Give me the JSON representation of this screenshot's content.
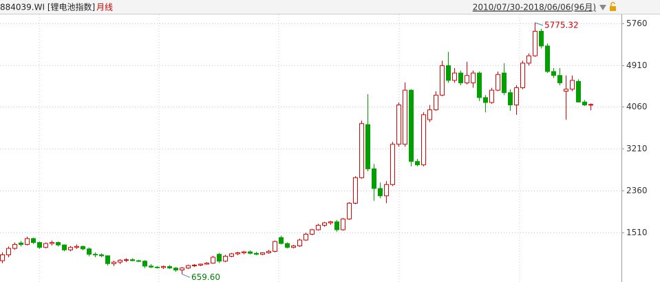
{
  "chart_data": {
    "type": "candlestick",
    "title": "884039.WI [锂电池指数]",
    "subtitle": "月线",
    "date_range": "2010/07/30-2018/06/06(96月)",
    "up_color": "#e00000",
    "down_color": "#00a000",
    "ylim": [
      496,
      5928
    ],
    "yticks": [
      1510,
      2360,
      3210,
      4060,
      4910,
      5760
    ],
    "grid": true,
    "annotations": [
      {
        "text": "5775.32"
      },
      {
        "text": "659.60"
      }
    ],
    "ohlc": [
      [
        930,
        1100,
        880,
        1050
      ],
      [
        1050,
        1220,
        1000,
        1180
      ],
      [
        1180,
        1300,
        1150,
        1260
      ],
      [
        1290,
        1330,
        1220,
        1260
      ],
      [
        1260,
        1420,
        1240,
        1380
      ],
      [
        1380,
        1400,
        1270,
        1300
      ],
      [
        1300,
        1320,
        1170,
        1200
      ],
      [
        1200,
        1300,
        1180,
        1280
      ],
      [
        1280,
        1340,
        1240,
        1300
      ],
      [
        1300,
        1320,
        1220,
        1250
      ],
      [
        1250,
        1260,
        1120,
        1150
      ],
      [
        1150,
        1230,
        1120,
        1200
      ],
      [
        1200,
        1260,
        1170,
        1220
      ],
      [
        1220,
        1240,
        1140,
        1170
      ],
      [
        1170,
        1200,
        1020,
        1060
      ],
      [
        1060,
        1100,
        1000,
        1050
      ],
      [
        1050,
        1080,
        1000,
        1030
      ],
      [
        1030,
        1040,
        830,
        870
      ],
      [
        870,
        930,
        820,
        900
      ],
      [
        900,
        960,
        860,
        940
      ],
      [
        940,
        980,
        900,
        950
      ],
      [
        950,
        980,
        920,
        930
      ],
      [
        930,
        950,
        900,
        920
      ],
      [
        920,
        940,
        780,
        820
      ],
      [
        820,
        860,
        780,
        800
      ],
      [
        800,
        820,
        770,
        790
      ],
      [
        790,
        830,
        760,
        810
      ],
      [
        810,
        840,
        760,
        780
      ],
      [
        780,
        800,
        700,
        740
      ],
      [
        740,
        800,
        659.6,
        780
      ],
      [
        780,
        850,
        760,
        830
      ],
      [
        830,
        860,
        800,
        840
      ],
      [
        840,
        870,
        820,
        860
      ],
      [
        860,
        900,
        850,
        880
      ],
      [
        880,
        1030,
        870,
        1000
      ],
      [
        1060,
        1090,
        880,
        920
      ],
      [
        920,
        1050,
        900,
        1020
      ],
      [
        1020,
        1090,
        1000,
        1070
      ],
      [
        1070,
        1110,
        1040,
        1090
      ],
      [
        1090,
        1130,
        1060,
        1110
      ],
      [
        1110,
        1140,
        1060,
        1080
      ],
      [
        1080,
        1110,
        1040,
        1060
      ],
      [
        1060,
        1100,
        1040,
        1090
      ],
      [
        1090,
        1150,
        1070,
        1120
      ],
      [
        1120,
        1340,
        1100,
        1320
      ],
      [
        1400,
        1440,
        1260,
        1280
      ],
      [
        1280,
        1300,
        1180,
        1200
      ],
      [
        1200,
        1250,
        1180,
        1230
      ],
      [
        1230,
        1380,
        1210,
        1350
      ],
      [
        1350,
        1500,
        1330,
        1470
      ],
      [
        1470,
        1580,
        1450,
        1560
      ],
      [
        1560,
        1680,
        1540,
        1650
      ],
      [
        1650,
        1720,
        1620,
        1700
      ],
      [
        1700,
        1740,
        1660,
        1720
      ],
      [
        1720,
        1760,
        1520,
        1560
      ],
      [
        1560,
        1800,
        1540,
        1780
      ],
      [
        1780,
        2120,
        1760,
        2100
      ],
      [
        2100,
        2650,
        2080,
        2620
      ],
      [
        2620,
        3780,
        2600,
        3720
      ],
      [
        3700,
        4320,
        2750,
        2800
      ],
      [
        2800,
        2900,
        2150,
        2400
      ],
      [
        2400,
        2520,
        2200,
        2250
      ],
      [
        2250,
        2550,
        2100,
        2480
      ],
      [
        2480,
        3350,
        2450,
        3300
      ],
      [
        3300,
        4150,
        3250,
        4100
      ],
      [
        3300,
        4560,
        3250,
        4400
      ],
      [
        4400,
        4420,
        2850,
        2950
      ],
      [
        2950,
        3000,
        2850,
        2880
      ],
      [
        2880,
        3950,
        2850,
        3900
      ],
      [
        3800,
        4100,
        3750,
        4000
      ],
      [
        4000,
        4380,
        3980,
        4300
      ],
      [
        4300,
        5000,
        4280,
        4900
      ],
      [
        4900,
        5180,
        4550,
        4600
      ],
      [
        4600,
        4850,
        4550,
        4750
      ],
      [
        4750,
        4800,
        4500,
        4550
      ],
      [
        4550,
        4980,
        4520,
        4700
      ],
      [
        4550,
        4800,
        4450,
        4750
      ],
      [
        4750,
        4780,
        4180,
        4250
      ],
      [
        4250,
        4300,
        3950,
        4150
      ],
      [
        4150,
        4450,
        4120,
        4400
      ],
      [
        4400,
        4780,
        4380,
        4720
      ],
      [
        4750,
        4950,
        4300,
        4350
      ],
      [
        4350,
        4420,
        3980,
        4100
      ],
      [
        4100,
        4500,
        3900,
        4450
      ],
      [
        4450,
        5000,
        4420,
        4950
      ],
      [
        4950,
        5150,
        4900,
        5100
      ],
      [
        5100,
        5775.32,
        5080,
        5600
      ],
      [
        5600,
        5650,
        5250,
        5300
      ],
      [
        5300,
        5350,
        4750,
        4780
      ],
      [
        4780,
        4850,
        4650,
        4700
      ],
      [
        4700,
        4850,
        4500,
        4550
      ],
      [
        4380,
        4700,
        3800,
        4420
      ],
      [
        4420,
        4700,
        4380,
        4600
      ],
      [
        4580,
        4620,
        4150,
        4160
      ],
      [
        4160,
        4200,
        4080,
        4100
      ],
      [
        4100,
        4130,
        3990,
        4110
      ]
    ]
  }
}
